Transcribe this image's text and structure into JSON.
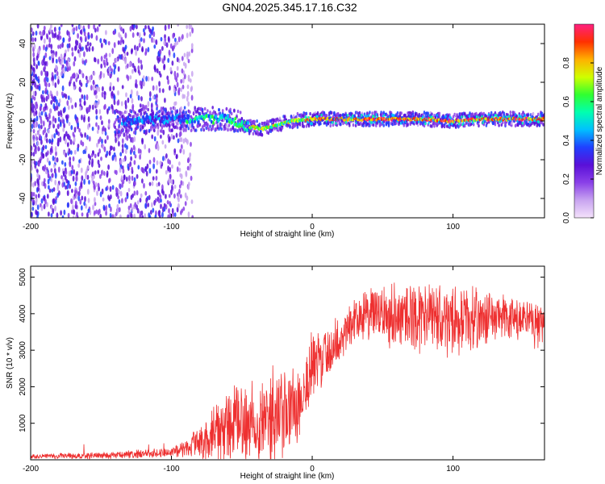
{
  "title": "GN04.2025.345.17.16.C32",
  "colors": {
    "snr_line": "#ee3030",
    "frame": "#000000"
  },
  "chart_data": [
    {
      "type": "heatmap",
      "title": "GN04.2025.345.17.16.C32",
      "xlabel": "Height of straight line (km)",
      "ylabel": "Frequency (Hz)",
      "xlim": [
        -200,
        165
      ],
      "ylim": [
        -50,
        50
      ],
      "xticks": [
        -200,
        -100,
        0,
        100
      ],
      "yticks": [
        40,
        20,
        0,
        -20,
        -40
      ],
      "colorbar": {
        "label": "Normalized spectral amplitude",
        "range": [
          0,
          1
        ],
        "ticks": [
          "0.0",
          "0.2",
          "0.4",
          "0.6",
          "0.8"
        ]
      },
      "colormap": [
        "#f4e2fb",
        "#c8a4f0",
        "#8a40e8",
        "#5a10d8",
        "#2040ff",
        "#00c0ff",
        "#00ffb0",
        "#30ff30",
        "#d0ff00",
        "#ffb000",
        "#ff3000",
        "#ff2080"
      ],
      "ridge": [
        {
          "x": -120,
          "f": 0
        },
        {
          "x": -100,
          "f": 1
        },
        {
          "x": -80,
          "f": 1
        },
        {
          "x": -60,
          "f": 1
        },
        {
          "x": -45,
          "f": -3
        },
        {
          "x": -35,
          "f": -4
        },
        {
          "x": -25,
          "f": -2
        },
        {
          "x": -15,
          "f": 0
        },
        {
          "x": 0,
          "f": 1
        },
        {
          "x": 40,
          "f": 1
        },
        {
          "x": 80,
          "f": 1
        },
        {
          "x": 100,
          "f": 0
        },
        {
          "x": 120,
          "f": 1
        },
        {
          "x": 165,
          "f": 1
        }
      ]
    },
    {
      "type": "line",
      "xlabel": "Height of straight line (km)",
      "ylabel": "SNR (10 * v/v)",
      "xlim": [
        -200,
        165
      ],
      "ylim": [
        0,
        5300
      ],
      "xticks": [
        -200,
        -100,
        0,
        100
      ],
      "yticks": [
        1000,
        2000,
        3000,
        4000,
        5000
      ],
      "series": [
        {
          "trend": [
            {
              "x": -200,
              "y": 100
            },
            {
              "x": -150,
              "y": 110
            },
            {
              "x": -100,
              "y": 200
            },
            {
              "x": -80,
              "y": 450
            },
            {
              "x": -60,
              "y": 900
            },
            {
              "x": -40,
              "y": 1100
            },
            {
              "x": -20,
              "y": 1200
            },
            {
              "x": -10,
              "y": 1600
            },
            {
              "x": 0,
              "y": 2500
            },
            {
              "x": 10,
              "y": 2900
            },
            {
              "x": 20,
              "y": 3300
            },
            {
              "x": 30,
              "y": 3900
            },
            {
              "x": 50,
              "y": 4000
            },
            {
              "x": 80,
              "y": 3900
            },
            {
              "x": 100,
              "y": 3800
            },
            {
              "x": 130,
              "y": 3900
            },
            {
              "x": 165,
              "y": 3700
            }
          ],
          "spread": [
            {
              "x": -200,
              "d": 80
            },
            {
              "x": -100,
              "d": 150
            },
            {
              "x": -80,
              "d": 500
            },
            {
              "x": -60,
              "d": 1200
            },
            {
              "x": -30,
              "d": 1500
            },
            {
              "x": -10,
              "d": 1500
            },
            {
              "x": 10,
              "d": 900
            },
            {
              "x": 30,
              "d": 700
            },
            {
              "x": 60,
              "d": 1100
            },
            {
              "x": 100,
              "d": 1100
            },
            {
              "x": 130,
              "d": 800
            },
            {
              "x": 165,
              "d": 700
            }
          ]
        }
      ]
    }
  ]
}
